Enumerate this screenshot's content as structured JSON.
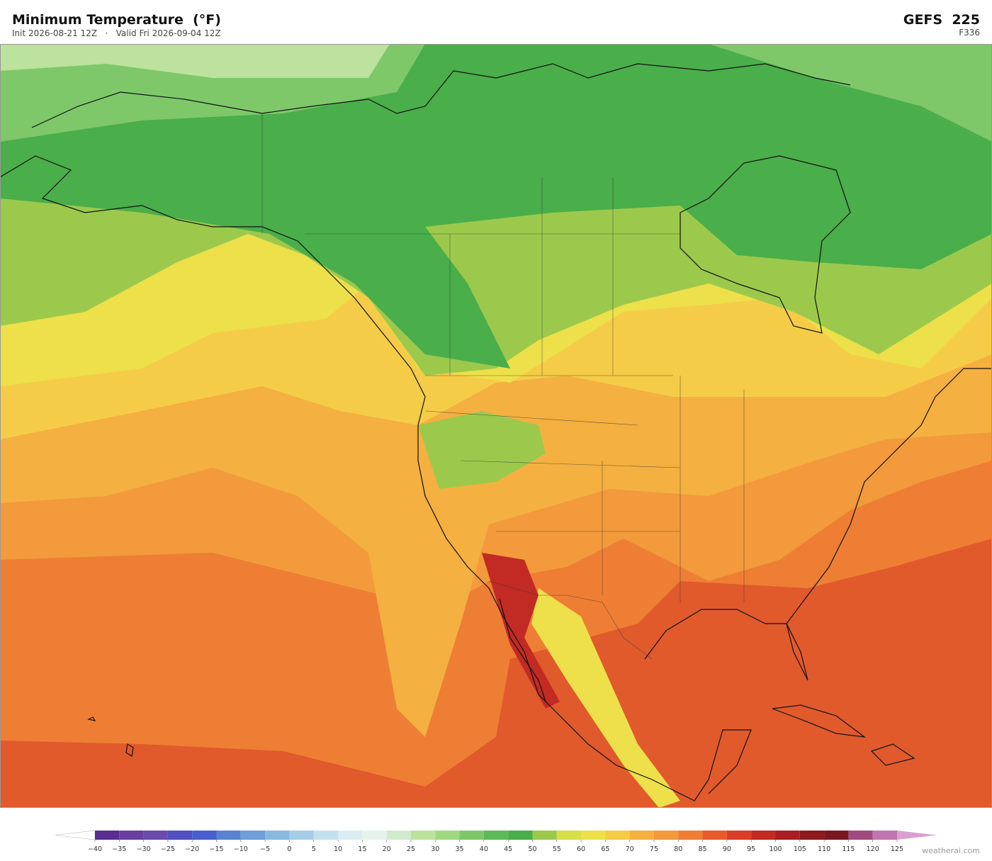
{
  "header": {
    "title": "Minimum Temperature  (°F)",
    "subtitle": "Init 2026-08-21 12Z   ·   Valid Fri 2026-09-04 12Z",
    "model": "GEFS  225",
    "forecast_hour": "F336"
  },
  "colorbar": {
    "ticks": [
      {
        "value": -40,
        "label": "−40"
      },
      {
        "value": -35,
        "label": "−35"
      },
      {
        "value": -30,
        "label": "−30"
      },
      {
        "value": -25,
        "label": "−25"
      },
      {
        "value": -20,
        "label": "−20"
      },
      {
        "value": -15,
        "label": "−15"
      },
      {
        "value": -10,
        "label": "−10"
      },
      {
        "value": -5,
        "label": "−5"
      },
      0,
      5,
      10,
      15,
      20,
      25,
      30,
      35,
      40,
      45,
      50,
      55,
      60,
      65,
      70,
      75,
      80,
      85,
      90,
      95,
      100,
      105,
      110,
      115,
      120,
      125
    ],
    "colors": [
      "#5a2d91",
      "#6a3fa0",
      "#6b4cad",
      "#5350c0",
      "#4a5fcc",
      "#5b82d0",
      "#6f9ed8",
      "#8ab9e0",
      "#a5cde8",
      "#c3e0ee",
      "#d9ecf2",
      "#e6f3ec",
      "#d2ebcc",
      "#bce29e",
      "#a0d882",
      "#7ec86a",
      "#5fba5a",
      "#4aae4a",
      "#9cc94c",
      "#d4df4a",
      "#ede04a",
      "#f5cc48",
      "#f4b040",
      "#f29a3c",
      "#ee7e34",
      "#e85a2c",
      "#d83e28",
      "#c22a24",
      "#a81e22",
      "#8c1a1e",
      "#7a1a20",
      "#a04a80",
      "#c074b0"
    ],
    "under_color": "#ffffff",
    "over_color": "#d8a0d0"
  },
  "footer": {
    "watermark": "weatherai.com"
  }
}
